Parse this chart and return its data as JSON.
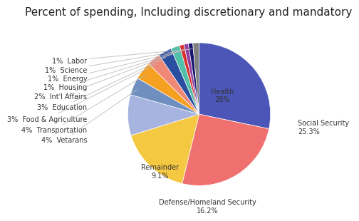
{
  "title": "Percent of spending, Including discretionary and mandatory",
  "slices": [
    {
      "label": "Health\n28%",
      "value": 28.0,
      "color": "#4b56b8"
    },
    {
      "label": "Social Security\n25.3%",
      "value": 25.3,
      "color": "#f07070"
    },
    {
      "label": "Defense/Homeland Security\n16.2%",
      "value": 16.2,
      "color": "#f5c842"
    },
    {
      "label": "Remainder\n9.1%",
      "value": 9.1,
      "color": "#a8b4e0"
    },
    {
      "label": "4%  Vetarans",
      "value": 4.0,
      "color": "#6e8fc0"
    },
    {
      "label": "4%  Transportation",
      "value": 4.0,
      "color": "#f5a020"
    },
    {
      "label": "3%  Food & Agriculture",
      "value": 3.0,
      "color": "#f08878"
    },
    {
      "label": "3%  Education",
      "value": 3.0,
      "color": "#2a4fa0"
    },
    {
      "label": "2%  Int'l Affairs",
      "value": 2.0,
      "color": "#50c0a8"
    },
    {
      "label": "1%  Housing",
      "value": 1.0,
      "color": "#d83030"
    },
    {
      "label": "1%  Energy",
      "value": 1.0,
      "color": "#9040a0"
    },
    {
      "label": "1%  Science",
      "value": 1.0,
      "color": "#181870"
    },
    {
      "label": "1%  Labor",
      "value": 1.4,
      "color": "#808080"
    }
  ],
  "title_fontsize": 11,
  "label_fontsize": 7,
  "bg_color": "#ffffff",
  "left_label_texts": [
    "1%  Labor",
    "1%  Science",
    "1%  Energy",
    "1%  Housing",
    "2%  Int'l Affairs",
    "3%  Education",
    "3%  Food & Agriculture",
    "4%  Transportation",
    "4%  Vetarans"
  ],
  "left_label_indices": [
    12,
    11,
    10,
    9,
    8,
    7,
    6,
    5,
    4
  ]
}
